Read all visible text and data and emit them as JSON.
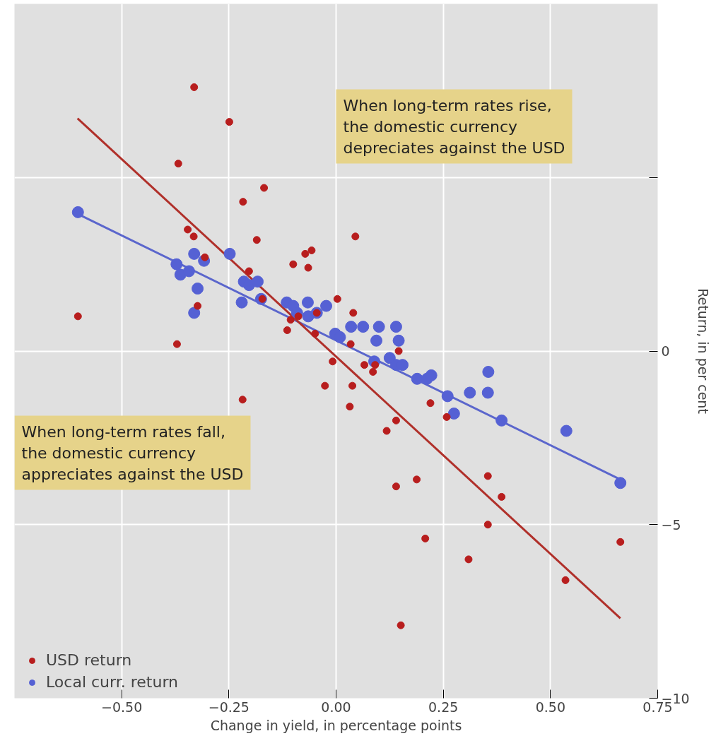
{
  "chart_data": {
    "type": "scatter",
    "xlabel": "Change in yield, in percentage points",
    "ylabel": "Return, in per cent",
    "xlim": [
      -0.75,
      0.75
    ],
    "ylim": [
      -10,
      10
    ],
    "xticks": [
      {
        "value": -0.5,
        "label": "−0.50"
      },
      {
        "value": -0.25,
        "label": "−0.25"
      },
      {
        "value": 0,
        "label": "0.00"
      },
      {
        "value": 0.25,
        "label": "0.25"
      },
      {
        "value": 0.5,
        "label": "0.50"
      },
      {
        "value": 0.75,
        "label": "0.75"
      }
    ],
    "yticks": [
      {
        "value": -10,
        "label": "−10"
      },
      {
        "value": -5,
        "label": "−5"
      },
      0,
      {
        "value": 5,
        "label": null
      }
    ],
    "grid": true,
    "legend": "bottom left",
    "series": [
      {
        "name": "USD return",
        "color": "#b81e1e",
        "marker": "circle",
        "x": [
          -0.331,
          -0.249,
          -0.368,
          -0.168,
          -0.217,
          -0.346,
          -0.332,
          -0.185,
          -0.306,
          -0.057,
          -0.072,
          -0.1,
          -0.065,
          0.045,
          -0.203,
          -0.172,
          -0.323,
          -0.602,
          0.003,
          0.04,
          -0.106,
          -0.088,
          -0.045,
          -0.114,
          -0.049,
          0.034,
          -0.371,
          0.146,
          -0.008,
          0.066,
          0.091,
          0.086,
          -0.026,
          0.038,
          -0.218,
          0.032,
          0.22,
          0.258,
          0.14,
          0.118,
          0.14,
          0.188,
          0.354,
          0.386,
          0.354,
          0.208,
          0.309,
          0.535,
          0.663,
          0.151
        ],
        "values": [
          7.6,
          6.6,
          5.4,
          4.7,
          4.3,
          3.5,
          3.3,
          3.2,
          2.7,
          2.9,
          2.8,
          2.5,
          2.4,
          3.3,
          2.3,
          1.5,
          1.3,
          1.0,
          1.5,
          1.1,
          0.9,
          1.0,
          1.1,
          0.6,
          0.5,
          0.2,
          0.2,
          0.0,
          -0.3,
          -0.4,
          -0.4,
          -0.6,
          -1.0,
          -1.0,
          -1.4,
          -1.6,
          -1.5,
          -1.9,
          -2.0,
          -2.3,
          -3.9,
          -3.7,
          -3.6,
          -4.2,
          -5.0,
          -5.4,
          -6.0,
          -6.6,
          -5.5,
          -7.9
        ]
      },
      {
        "name": "Local curr. return",
        "color": "#5561d4",
        "marker": "circle",
        "x": [
          -0.602,
          -0.372,
          -0.363,
          -0.343,
          -0.331,
          -0.308,
          -0.248,
          -0.215,
          -0.203,
          -0.183,
          -0.323,
          -0.331,
          -0.22,
          -0.175,
          -0.115,
          -0.1,
          -0.091,
          -0.066,
          -0.065,
          -0.045,
          -0.023,
          -0.002,
          0.009,
          0.035,
          0.063,
          0.1,
          0.14,
          0.146,
          0.094,
          0.089,
          0.125,
          0.14,
          0.155,
          0.189,
          0.212,
          0.222,
          0.26,
          0.275,
          0.312,
          0.354,
          0.355,
          0.386,
          0.537,
          0.663
        ],
        "values": [
          4.0,
          2.5,
          2.2,
          2.3,
          2.8,
          2.6,
          2.8,
          2.0,
          1.9,
          2.0,
          1.8,
          1.1,
          1.4,
          1.5,
          1.4,
          1.3,
          1.1,
          1.4,
          1.0,
          1.1,
          1.3,
          0.5,
          0.4,
          0.7,
          0.7,
          0.7,
          0.7,
          0.3,
          0.3,
          -0.3,
          -0.2,
          -0.4,
          -0.4,
          -0.8,
          -0.8,
          -0.7,
          -1.3,
          -1.8,
          -1.2,
          -1.2,
          -0.6,
          -2.0,
          -2.3,
          -3.8
        ]
      },
      {
        "type": "line",
        "color": "#b0302a",
        "x": [
          -0.603,
          0.663
        ],
        "values": [
          6.7,
          -7.7
        ]
      },
      {
        "type": "line",
        "color": "#5b66cc",
        "x": [
          -0.611,
          0.663
        ],
        "values": [
          4.0,
          -3.7
        ]
      }
    ],
    "annotations": [
      "When long-term rates rise, the domestic currency depreciates against the USD",
      "When long-term rates fall, the domestic currency appreciates against the USD"
    ]
  }
}
